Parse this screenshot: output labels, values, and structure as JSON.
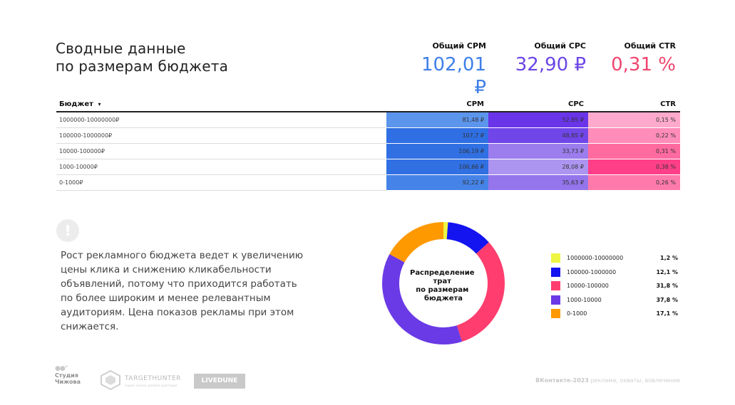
{
  "title": {
    "line1": "Сводные данные",
    "line2": "по размерам бюджета"
  },
  "kpis": [
    {
      "label": "Общий CPM",
      "value": "102,01 ₽",
      "color": "#3f7fe8"
    },
    {
      "label": "Общий CPC",
      "value": "32,90 ₽",
      "color": "#6b46e6"
    },
    {
      "label": "Общий CTR",
      "value": "0,31 %",
      "color": "#f0466f"
    }
  ],
  "table": {
    "headers": {
      "budget": "Бюджет",
      "sort_icon": "▾",
      "cpm": "CPM",
      "cpc": "CPC",
      "ctr": "CTR"
    },
    "rows": [
      {
        "budget": "1000000-10000000₽",
        "cpm": "81,48 ₽",
        "cpc": "52,85 ₽",
        "ctr": "0,15 %",
        "cpm_color": "#5c95ec",
        "cpc_color": "#6a35e8",
        "ctr_color": "#ffaacc"
      },
      {
        "budget": "100000-1000000₽",
        "cpm": "107,7 ₽",
        "cpc": "48,85 ₽",
        "ctr": "0,22 %",
        "cpm_color": "#2f6fe3",
        "cpc_color": "#7146e9",
        "ctr_color": "#ff8cb9"
      },
      {
        "budget": "10000-100000₽",
        "cpm": "106,19 ₽",
        "cpc": "33,73 ₽",
        "ctr": "0,31 %",
        "cpm_color": "#3070e3",
        "cpc_color": "#9b7ded",
        "ctr_color": "#ff6a9f"
      },
      {
        "budget": "1000-10000₽",
        "cpm": "106,66 ₽",
        "cpc": "28,08 ₽",
        "ctr": "0,38 %",
        "cpm_color": "#3070e3",
        "cpc_color": "#ac95f0",
        "ctr_color": "#ff3f88"
      },
      {
        "budget": "0-1000₽",
        "cpm": "92,22 ₽",
        "cpc": "35,63 ₽",
        "ctr": "0,26 %",
        "cpm_color": "#4583e8",
        "cpc_color": "#9475ec",
        "ctr_color": "#ff7aab"
      }
    ]
  },
  "note": {
    "icon": "exclamation-icon",
    "text": "Рост рекламного бюджета ведет к увеличению цены клика и снижению кликабельности объявлений, потому что приходится работать по более широким и менее релевантным аудиториям. Цена показов рекламы при этом снижается."
  },
  "chart_data": {
    "type": "pie",
    "title": "Распределение трат по размерам бюджета",
    "categories": [
      "1000000-10000000",
      "100000-1000000",
      "10000-100000",
      "1000-10000",
      "0-1000"
    ],
    "values": [
      1.2,
      12.1,
      31.8,
      37.8,
      17.1
    ],
    "value_labels": [
      "1,2 %",
      "12,1 %",
      "31,8 %",
      "37,8 %",
      "17,1 %"
    ],
    "colors": [
      "#eef542",
      "#1414f0",
      "#ff3d6e",
      "#6a3ae6",
      "#ff9900"
    ],
    "legend_position": "right",
    "donut": true
  },
  "footer": {
    "studio": {
      "line1": "Студия",
      "line2": "Чижова"
    },
    "targethunter": {
      "name": "TARGETHUNTER",
      "tagline": "сервис поиска целевой аудитории"
    },
    "livedune": "LIVEDUNE",
    "right_bold": "ВКонтакте-2023",
    "right_text": " реклама, охваты, вовлечение"
  }
}
